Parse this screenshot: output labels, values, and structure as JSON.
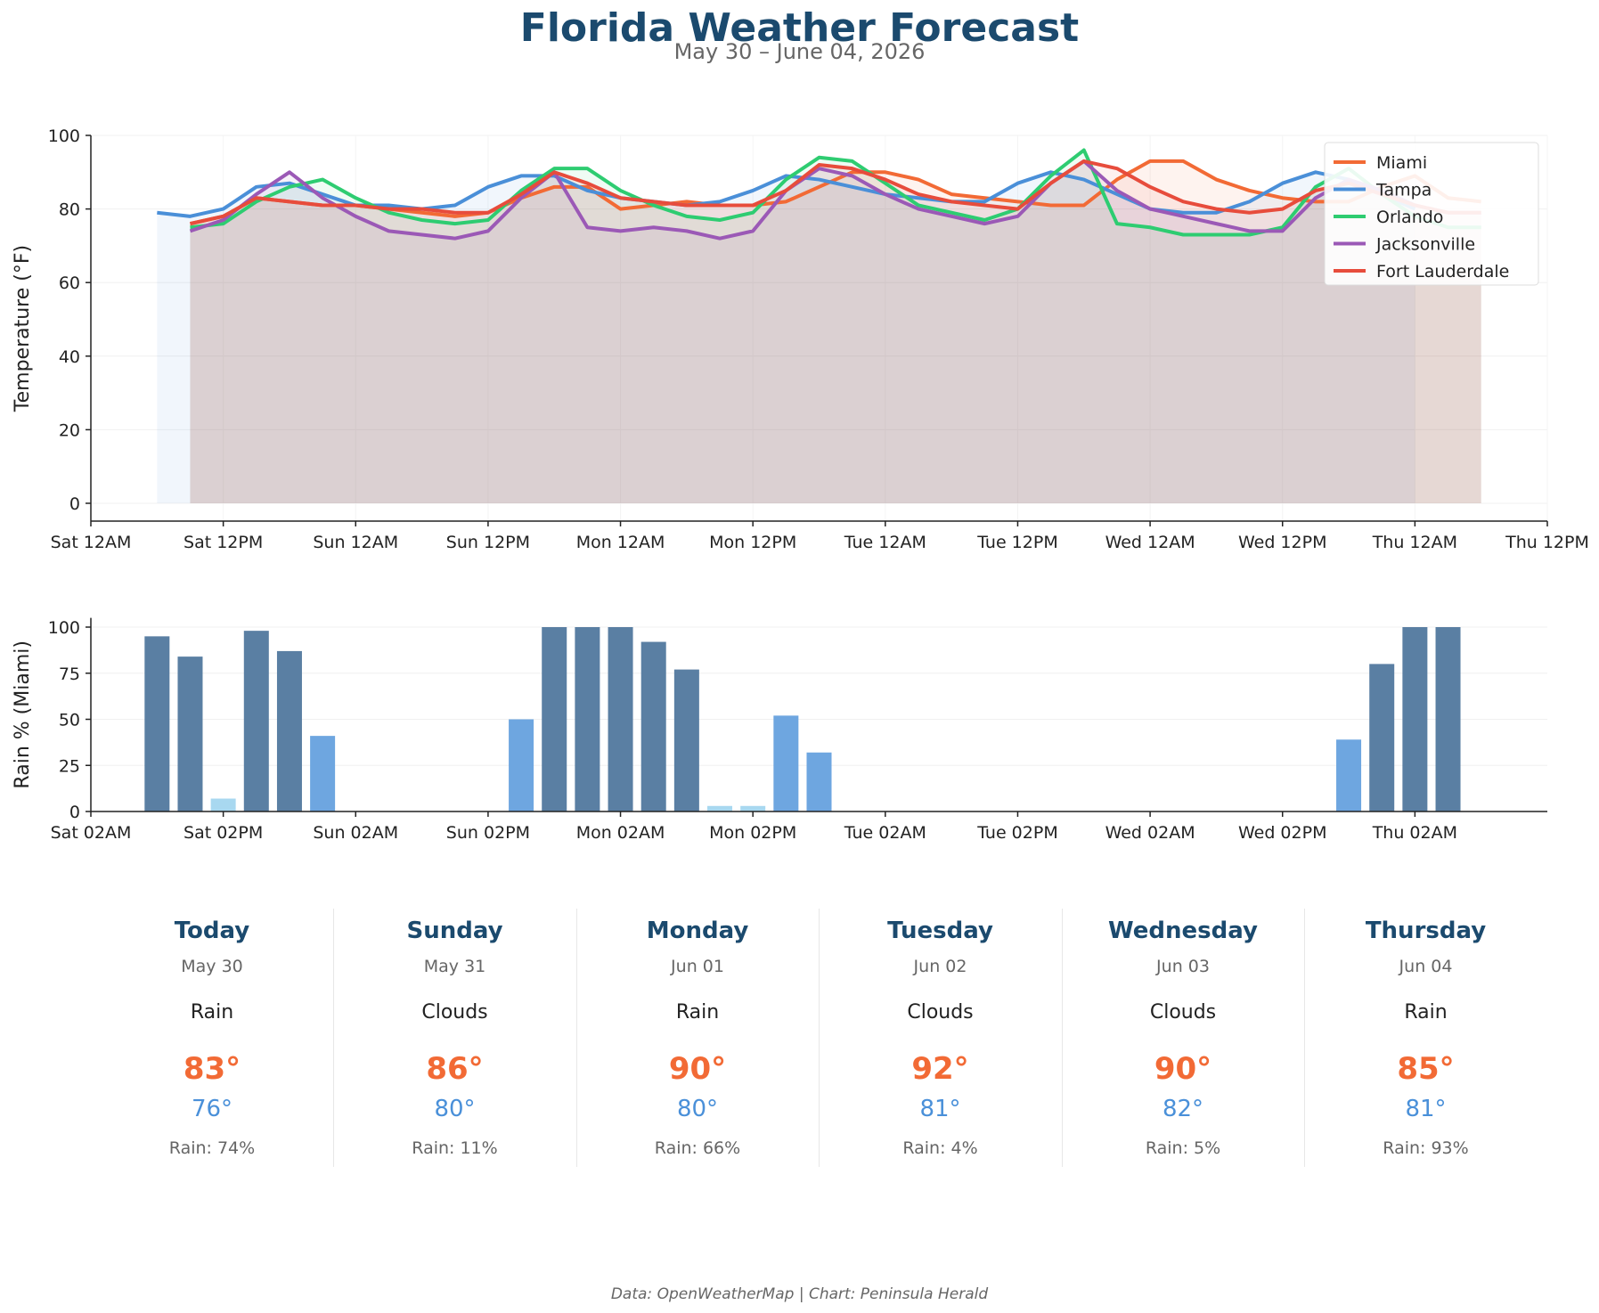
{
  "title": "Florida Weather Forecast",
  "subtitle": "May 30 – June 04, 2026",
  "footer": "Data: OpenWeatherMap | Chart: Peninsula Herald",
  "chart_data": [
    {
      "type": "line",
      "ylabel": "Temperature (°F)",
      "xlabel": "",
      "ylim": [
        0,
        100
      ],
      "yticks": [
        0,
        20,
        40,
        60,
        80,
        100
      ],
      "xlim_hours": [
        0,
        132
      ],
      "xtick_labels": [
        "Sat 12AM",
        "Sat 12PM",
        "Sun 12AM",
        "Sun 12PM",
        "Mon 12AM",
        "Mon 12PM",
        "Tue 12AM",
        "Tue 12PM",
        "Wed 12AM",
        "Wed 12PM",
        "Thu 12AM",
        "Thu 12PM"
      ],
      "grid": true,
      "legend": "top-right",
      "series": [
        {
          "name": "Miami",
          "color": "#f26a35",
          "x": [
            9,
            12,
            15,
            18,
            21,
            24,
            27,
            30,
            33,
            36,
            39,
            42,
            45,
            48,
            51,
            54,
            57,
            60,
            63,
            66,
            69,
            72,
            75,
            78,
            81,
            84,
            87,
            90,
            93,
            96,
            99,
            102,
            105,
            108,
            111,
            114,
            117,
            120,
            123,
            126
          ],
          "values": [
            76,
            78,
            83,
            82,
            81,
            81,
            80,
            79,
            78,
            79,
            83,
            86,
            86,
            80,
            81,
            82,
            81,
            81,
            82,
            86,
            90,
            90,
            88,
            84,
            83,
            82,
            81,
            81,
            88,
            93,
            93,
            88,
            85,
            83,
            82,
            82,
            86,
            89,
            83,
            82
          ]
        },
        {
          "name": "Tampa",
          "color": "#4a8fd8",
          "x": [
            6,
            9,
            12,
            15,
            18,
            21,
            24,
            27,
            30,
            33,
            36,
            39,
            42,
            45,
            48,
            51,
            54,
            57,
            60,
            63,
            66,
            69,
            72,
            75,
            78,
            81,
            84,
            87,
            90,
            93,
            96,
            99,
            102,
            105,
            108,
            111,
            114,
            117,
            120
          ],
          "values": [
            79,
            78,
            80,
            86,
            87,
            84,
            81,
            81,
            80,
            81,
            86,
            89,
            89,
            85,
            83,
            82,
            81,
            82,
            85,
            89,
            88,
            86,
            84,
            83,
            82,
            82,
            87,
            90,
            88,
            84,
            80,
            79,
            79,
            82,
            87,
            90,
            88,
            84,
            80
          ]
        },
        {
          "name": "Orlando",
          "color": "#2ecc71",
          "x": [
            9,
            12,
            15,
            18,
            21,
            24,
            27,
            30,
            33,
            36,
            39,
            42,
            45,
            48,
            51,
            54,
            57,
            60,
            63,
            66,
            69,
            72,
            75,
            78,
            81,
            84,
            87,
            90,
            93,
            96,
            99,
            102,
            105,
            108,
            111,
            114,
            117,
            120,
            123,
            126
          ],
          "values": [
            75,
            76,
            82,
            86,
            88,
            83,
            79,
            77,
            76,
            77,
            85,
            91,
            91,
            85,
            81,
            78,
            77,
            79,
            88,
            94,
            93,
            87,
            81,
            79,
            77,
            80,
            89,
            96,
            76,
            75,
            73,
            73,
            73,
            75,
            86,
            91,
            84,
            78,
            75,
            75
          ]
        },
        {
          "name": "Jacksonville",
          "color": "#9b59b6",
          "x": [
            9,
            12,
            15,
            18,
            21,
            24,
            27,
            30,
            33,
            36,
            39,
            42,
            45,
            48,
            51,
            54,
            57,
            60,
            63,
            66,
            69,
            72,
            75,
            78,
            81,
            84,
            87,
            90,
            93,
            96,
            99,
            102,
            105,
            108,
            111,
            114,
            117,
            120,
            123,
            126
          ],
          "values": [
            74,
            77,
            84,
            90,
            83,
            78,
            74,
            73,
            72,
            74,
            83,
            90,
            75,
            74,
            75,
            74,
            72,
            74,
            85,
            91,
            89,
            84,
            80,
            78,
            76,
            78,
            87,
            93,
            85,
            80,
            78,
            76,
            74,
            74,
            83,
            88,
            85,
            81,
            79,
            79
          ]
        },
        {
          "name": "Fort Lauderdale",
          "color": "#e74c3c",
          "x": [
            9,
            12,
            15,
            18,
            21,
            24,
            27,
            30,
            33,
            36,
            39,
            42,
            45,
            48,
            51,
            54,
            57,
            60,
            63,
            66,
            69,
            72,
            75,
            78,
            81,
            84,
            87,
            90,
            93,
            96,
            99,
            102,
            105,
            108,
            111,
            114,
            117,
            120,
            123,
            126
          ],
          "values": [
            76,
            78,
            83,
            82,
            81,
            81,
            80,
            80,
            79,
            79,
            84,
            90,
            87,
            83,
            82,
            81,
            81,
            81,
            85,
            92,
            91,
            88,
            84,
            82,
            81,
            80,
            87,
            93,
            91,
            86,
            82,
            80,
            79,
            80,
            85,
            87,
            84,
            81,
            79,
            79
          ]
        }
      ]
    },
    {
      "type": "bar",
      "ylabel": "Rain % (Miami)",
      "xlabel": "",
      "ylim": [
        0,
        105
      ],
      "yticks": [
        0,
        25,
        50,
        75,
        100
      ],
      "xlim_hours": [
        2,
        134
      ],
      "xtick_labels": [
        "Sat 02AM",
        "Sat 02PM",
        "Sun 02AM",
        "Sun 02PM",
        "Mon 02AM",
        "Mon 02PM",
        "Tue 02AM",
        "Tue 02PM",
        "Wed 02AM",
        "Wed 02PM",
        "Thu 02AM"
      ],
      "grid": true,
      "x": [
        8,
        11,
        14,
        17,
        20,
        23,
        26,
        29,
        32,
        35,
        38,
        41,
        44,
        47,
        50,
        53,
        56,
        59,
        62,
        65,
        68,
        71,
        74,
        77,
        80,
        83,
        86,
        89,
        92,
        95,
        98,
        101,
        104,
        107,
        110,
        113,
        116,
        119,
        122,
        125
      ],
      "values": [
        95,
        84,
        7,
        98,
        87,
        41,
        0,
        0,
        0,
        0,
        0,
        50,
        100,
        100,
        100,
        92,
        77,
        3,
        3,
        52,
        32,
        0,
        0,
        0,
        0,
        0,
        0,
        0,
        0,
        0,
        0,
        0,
        0,
        0,
        0,
        0,
        39,
        80,
        100,
        100
      ],
      "colors": {
        "high": "#5a7fa3",
        "medium": "#6ea6e0",
        "low": "#a8d8f0"
      }
    }
  ],
  "days": [
    {
      "name": "Today",
      "date": "May 30",
      "condition": "Rain",
      "high": "83°",
      "low": "76°",
      "rain": "Rain: 74%"
    },
    {
      "name": "Sunday",
      "date": "May 31",
      "condition": "Clouds",
      "high": "86°",
      "low": "80°",
      "rain": "Rain: 11%"
    },
    {
      "name": "Monday",
      "date": "Jun 01",
      "condition": "Rain",
      "high": "90°",
      "low": "80°",
      "rain": "Rain: 66%"
    },
    {
      "name": "Tuesday",
      "date": "Jun 02",
      "condition": "Clouds",
      "high": "92°",
      "low": "81°",
      "rain": "Rain: 4%"
    },
    {
      "name": "Wednesday",
      "date": "Jun 03",
      "condition": "Clouds",
      "high": "90°",
      "low": "82°",
      "rain": "Rain: 5%"
    },
    {
      "name": "Thursday",
      "date": "Jun 04",
      "condition": "Rain",
      "high": "85°",
      "low": "81°",
      "rain": "Rain: 93%"
    }
  ]
}
